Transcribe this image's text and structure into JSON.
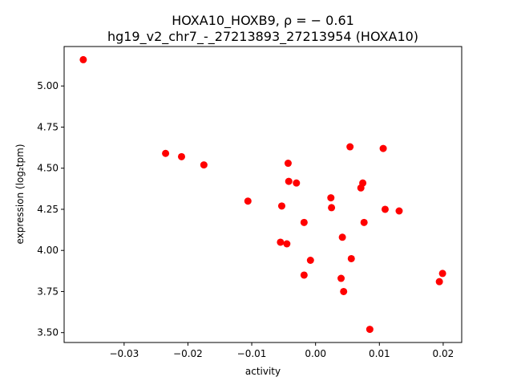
{
  "chart_data": {
    "type": "scatter",
    "title_line1": "HOXA10_HOXB9, ρ = − 0.61",
    "title_line2": "hg19_v2_chr7_-_27213893_27213954 (HOXA10)",
    "xlabel": "activity",
    "ylabel": "expression (log₂tpm)",
    "xlim": [
      -0.0394,
      0.0229
    ],
    "ylim": [
      3.44,
      5.24
    ],
    "x_ticks": [
      -0.03,
      -0.02,
      -0.01,
      0.0,
      0.01,
      0.02
    ],
    "x_tick_labels": [
      "−0.03",
      "−0.02",
      "−0.01",
      "0.00",
      "0.01",
      "0.02"
    ],
    "y_ticks": [
      3.5,
      3.75,
      4.0,
      4.25,
      4.5,
      4.75,
      5.0
    ],
    "y_tick_labels": [
      "3.50",
      "3.75",
      "4.00",
      "4.25",
      "4.50",
      "4.75",
      "5.00"
    ],
    "marker_color": "#ff0000",
    "grid": false,
    "points": [
      {
        "x": -0.0364,
        "y": 5.16
      },
      {
        "x": -0.0235,
        "y": 4.59
      },
      {
        "x": -0.021,
        "y": 4.57
      },
      {
        "x": -0.0175,
        "y": 4.52
      },
      {
        "x": -0.0106,
        "y": 4.3
      },
      {
        "x": -0.0053,
        "y": 4.27
      },
      {
        "x": -0.0055,
        "y": 4.05
      },
      {
        "x": -0.0045,
        "y": 4.04
      },
      {
        "x": -0.0043,
        "y": 4.53
      },
      {
        "x": -0.0042,
        "y": 4.42
      },
      {
        "x": -0.003,
        "y": 4.41
      },
      {
        "x": -0.0018,
        "y": 4.17
      },
      {
        "x": -0.0018,
        "y": 3.85
      },
      {
        "x": -0.0008,
        "y": 3.94
      },
      {
        "x": 0.0024,
        "y": 4.32
      },
      {
        "x": 0.0025,
        "y": 4.26
      },
      {
        "x": 0.004,
        "y": 3.83
      },
      {
        "x": 0.0042,
        "y": 4.08
      },
      {
        "x": 0.0044,
        "y": 3.75
      },
      {
        "x": 0.0054,
        "y": 4.63
      },
      {
        "x": 0.0056,
        "y": 3.95
      },
      {
        "x": 0.0071,
        "y": 4.38
      },
      {
        "x": 0.0074,
        "y": 4.41
      },
      {
        "x": 0.0076,
        "y": 4.17
      },
      {
        "x": 0.0085,
        "y": 3.52
      },
      {
        "x": 0.0106,
        "y": 4.62
      },
      {
        "x": 0.0109,
        "y": 4.25
      },
      {
        "x": 0.0131,
        "y": 4.24
      },
      {
        "x": 0.0194,
        "y": 3.81
      },
      {
        "x": 0.0199,
        "y": 3.86
      }
    ]
  }
}
